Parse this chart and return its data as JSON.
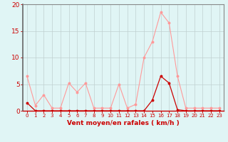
{
  "x_labels": [
    "0",
    "1",
    "2",
    "3",
    "4",
    "5",
    "6",
    "7",
    "8",
    "9",
    "10",
    "11",
    "12",
    "13",
    "14",
    "15",
    "16",
    "17",
    "18",
    "19",
    "20",
    "21",
    "22",
    "23"
  ],
  "x_values": [
    0,
    1,
    2,
    3,
    4,
    5,
    6,
    7,
    8,
    9,
    10,
    11,
    12,
    13,
    14,
    15,
    16,
    17,
    18,
    19,
    20,
    21,
    22,
    23
  ],
  "line1_y": [
    6.5,
    1.0,
    3.0,
    0.5,
    0.5,
    5.2,
    3.5,
    5.2,
    0.5,
    0.5,
    0.5,
    5.0,
    0.5,
    1.2,
    10.0,
    13.0,
    18.5,
    16.5,
    6.5,
    0.5,
    0.5,
    0.5,
    0.5,
    0.5
  ],
  "line2_y": [
    1.5,
    0.0,
    0.0,
    0.0,
    0.0,
    0.0,
    0.0,
    0.0,
    0.0,
    0.0,
    0.0,
    0.0,
    0.0,
    0.0,
    0.0,
    2.0,
    6.5,
    5.2,
    0.2,
    0.0,
    0.0,
    0.0,
    0.0,
    0.0
  ],
  "line1_color": "#ff9999",
  "line2_color": "#cc0000",
  "bg_color": "#e0f5f5",
  "grid_color": "#c0d0d0",
  "axis_color": "#888888",
  "tick_color": "#cc0000",
  "ylabel_values": [
    0,
    5,
    10,
    15,
    20
  ],
  "ylim": [
    0,
    20
  ],
  "xlabel": "Vent moyen/en rafales ( km/h )",
  "title": ""
}
